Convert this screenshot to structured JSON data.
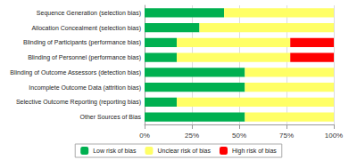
{
  "chart_data": {
    "type": "bar",
    "orientation": "horizontal",
    "stacked": true,
    "grid": true,
    "legend": "bottom",
    "categories": [
      "Sequence Generation (selection bias)",
      "Allocation Concealment (selection bias)",
      "Blinding of Participants (performance bias)",
      "Blinding of Personnel (performance bias)",
      "Blinding of Outcome Assessors (detection bias)",
      "Incomplete Outcome Data (attrition bias)",
      "Selective Outcome Reporting (reporting bias)",
      "Other Sources of Bias"
    ],
    "series": [
      {
        "name": "Low risk of bias",
        "color": "#00b050",
        "values": [
          42,
          29,
          17,
          17,
          53,
          53,
          17,
          53
        ]
      },
      {
        "name": "Unclear risk of bias",
        "color": "#ffff66",
        "values": [
          58,
          71,
          60,
          60,
          47,
          47,
          83,
          47
        ]
      },
      {
        "name": "High risk of bias",
        "color": "#ff0000",
        "values": [
          0,
          0,
          23,
          23,
          0,
          0,
          0,
          0
        ]
      }
    ],
    "xlim": [
      0,
      100
    ],
    "xticks": [
      {
        "value": 0,
        "label": "0%"
      },
      {
        "value": 25,
        "label": "25%"
      },
      {
        "value": 50,
        "label": "50%"
      },
      {
        "value": 75,
        "label": "75%"
      },
      {
        "value": 100,
        "label": "100%"
      }
    ]
  }
}
